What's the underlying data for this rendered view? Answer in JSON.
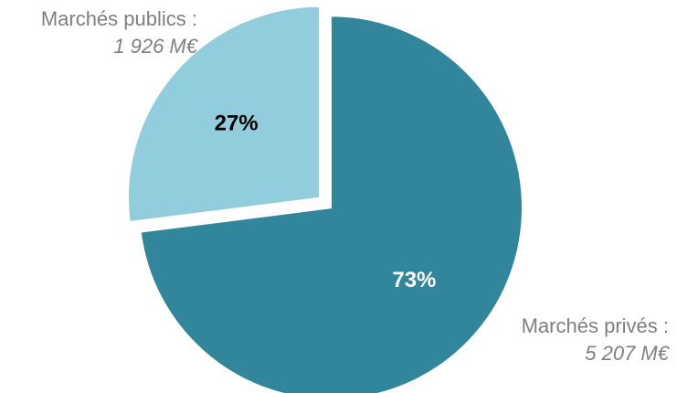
{
  "chart_data": {
    "type": "pie",
    "slices": [
      {
        "label": "Marchés privés :",
        "value_text": "5 207 M€",
        "value": 5207,
        "percent_label": "73%",
        "color": "#32869b",
        "label_color": "#ffffff"
      },
      {
        "label": "Marchés publics :",
        "value_text": "1 926 M€",
        "value": 1926,
        "percent_label": "27%",
        "color": "#92cddd",
        "label_color": "#000000"
      }
    ],
    "exploded": true,
    "label_color": "#7f7f7f"
  }
}
